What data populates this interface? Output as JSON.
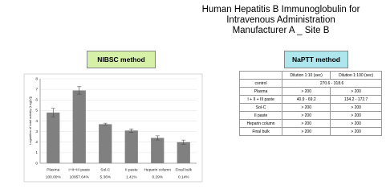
{
  "title": [
    "Human Hepatitis B Immunoglobulin for",
    "Intravenous Administration",
    "Manufacturer A _ Site B"
  ],
  "nibsc_label": "NIBSC method",
  "naptt_label": "NaPTT method",
  "chart_data": {
    "type": "bar",
    "y_label": "Logarithm of total activity (Log[U])",
    "categories": [
      "Plasma",
      "I+II+III paste",
      "Sol-C",
      "II paste",
      "Heparin column",
      "Final bulk"
    ],
    "percentages": [
      "100.00%",
      "10957.64%",
      "5.36%",
      "1.41%",
      "0.29%",
      "0.14%"
    ],
    "values": [
      4.8,
      6.9,
      3.7,
      3.1,
      2.4,
      2.0
    ],
    "errors": [
      0.4,
      0.35,
      0.1,
      0.15,
      0.2,
      0.2
    ],
    "color": "#808080",
    "ylim": [
      0,
      8
    ],
    "yticks": [
      0,
      1,
      2,
      3,
      4,
      5,
      6,
      7,
      8
    ],
    "grid": true
  },
  "table": {
    "header": [
      "Dilution 1:10 (sec)",
      "Dilution 1:100 (sec)"
    ],
    "rows": [
      [
        "control",
        "270.6 - 318.6"
      ],
      [
        "Plasma",
        "> 200",
        "> 200"
      ],
      [
        "I + II + III paste",
        "40.9 - 69.2",
        "134.2 - 172.7"
      ],
      [
        "Sol-C",
        "> 200",
        "> 200"
      ],
      [
        "II paste",
        "> 200",
        "> 200"
      ],
      [
        "Heparin column",
        "> 200",
        "> 200"
      ],
      [
        "Final bulk",
        "> 200",
        "> 200"
      ]
    ]
  }
}
